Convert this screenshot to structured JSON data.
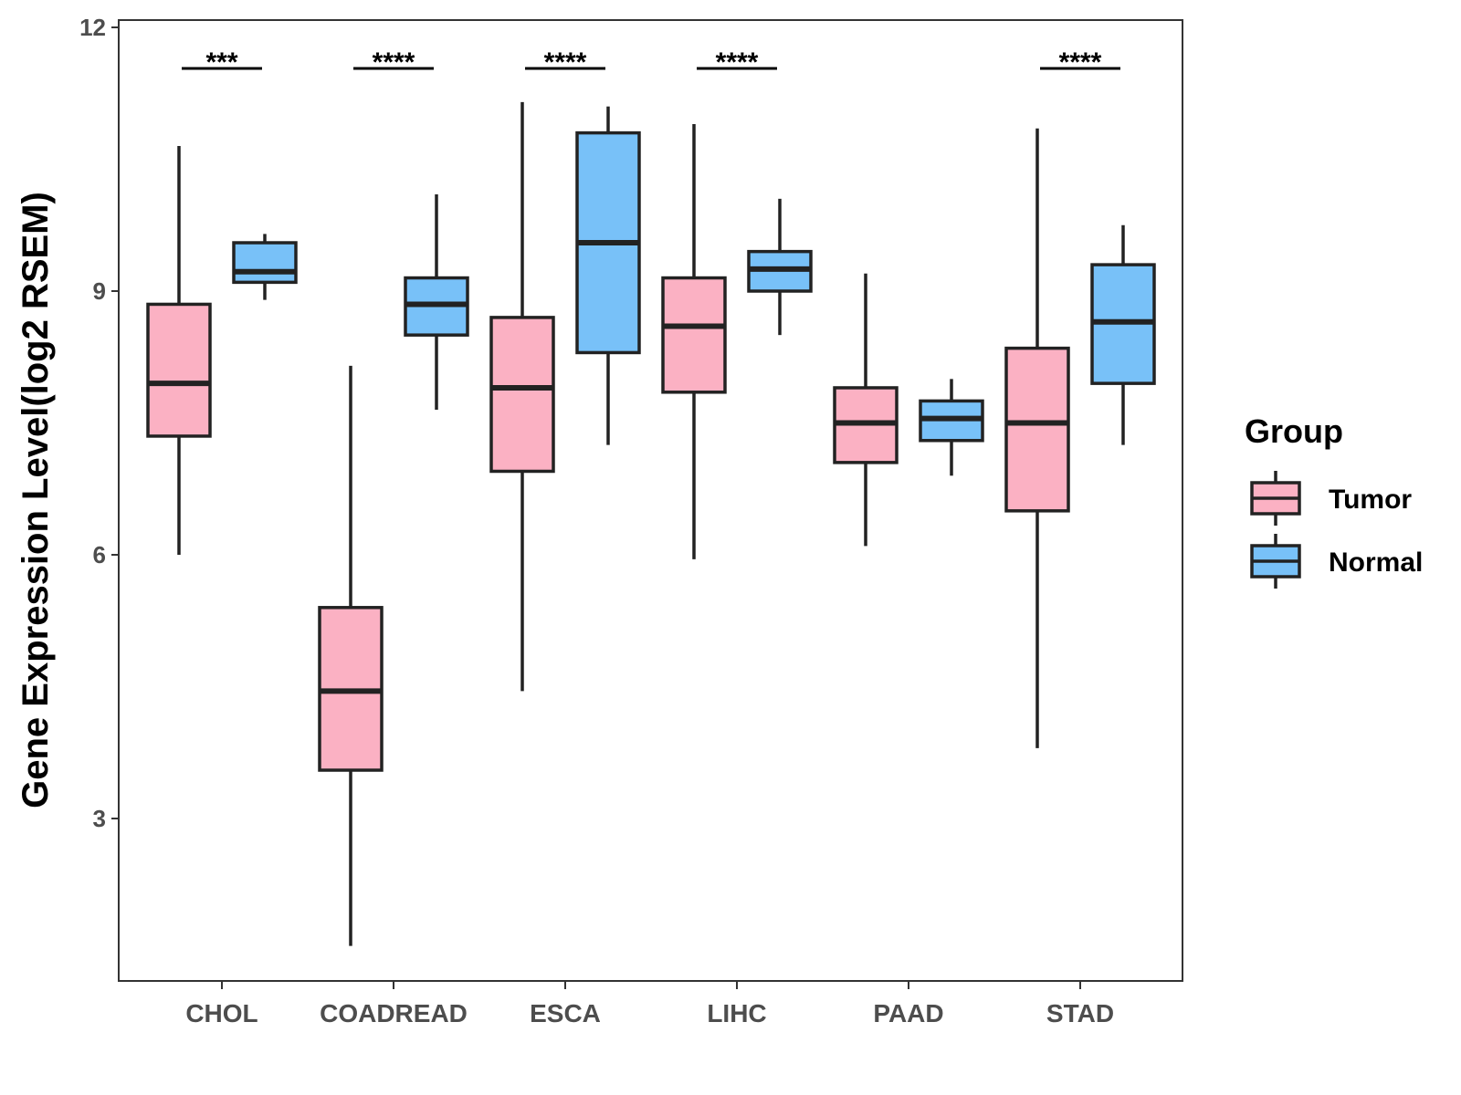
{
  "chart_data": {
    "type": "boxplot",
    "ylabel": "Gene Expression Level(log2 RSEM)",
    "xlabel": "",
    "ylim": [
      1.6,
      12
    ],
    "yticks": [
      3,
      6,
      9,
      12
    ],
    "categories": [
      "CHOL",
      "COADREAD",
      "ESCA",
      "LIHC",
      "PAAD",
      "STAD"
    ],
    "legend": {
      "title": "Group",
      "position": "right",
      "entries": [
        {
          "name": "Tumor",
          "color": "#FBB1C3"
        },
        {
          "name": "Normal",
          "color": "#78C1F8"
        }
      ]
    },
    "series": [
      {
        "name": "Tumor",
        "color": "#FBB1C3",
        "boxes": [
          {
            "min": 6.0,
            "q1": 7.35,
            "median": 7.95,
            "q3": 8.85,
            "max": 10.65
          },
          {
            "min": 1.55,
            "q1": 3.55,
            "median": 4.45,
            "q3": 5.4,
            "max": 8.15
          },
          {
            "min": 4.45,
            "q1": 6.95,
            "median": 7.9,
            "q3": 8.7,
            "max": 11.15
          },
          {
            "min": 5.95,
            "q1": 7.85,
            "median": 8.6,
            "q3": 9.15,
            "max": 10.9
          },
          {
            "min": 6.1,
            "q1": 7.05,
            "median": 7.5,
            "q3": 7.9,
            "max": 9.2
          },
          {
            "min": 3.8,
            "q1": 6.5,
            "median": 7.5,
            "q3": 8.35,
            "max": 10.85
          }
        ]
      },
      {
        "name": "Normal",
        "color": "#78C1F8",
        "boxes": [
          {
            "min": 8.9,
            "q1": 9.1,
            "median": 9.22,
            "q3": 9.55,
            "max": 9.65
          },
          {
            "min": 7.65,
            "q1": 8.5,
            "median": 8.85,
            "q3": 9.15,
            "max": 10.1
          },
          {
            "min": 7.25,
            "q1": 8.3,
            "median": 9.55,
            "q3": 10.8,
            "max": 11.1
          },
          {
            "min": 8.5,
            "q1": 9.0,
            "median": 9.25,
            "q3": 9.45,
            "max": 10.05
          },
          {
            "min": 6.9,
            "q1": 7.3,
            "median": 7.55,
            "q3": 7.75,
            "max": 8.0
          },
          {
            "min": 7.25,
            "q1": 7.95,
            "median": 8.65,
            "q3": 9.3,
            "max": 9.75
          }
        ]
      }
    ],
    "significance": [
      "***",
      "****",
      "****",
      "****",
      "",
      "****"
    ]
  }
}
